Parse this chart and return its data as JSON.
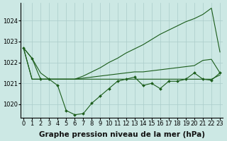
{
  "xlabel": "Graphe pression niveau de la mer (hPa)",
  "x": [
    0,
    1,
    2,
    3,
    4,
    5,
    6,
    7,
    8,
    9,
    10,
    11,
    12,
    13,
    14,
    15,
    16,
    17,
    18,
    19,
    20,
    21,
    22,
    23
  ],
  "line_dip": [
    1022.7,
    1022.2,
    1021.2,
    1021.2,
    1020.9,
    1019.7,
    1019.5,
    1019.55,
    1020.05,
    1020.4,
    1020.75,
    1021.1,
    1021.2,
    1021.3,
    1020.9,
    1021.0,
    1020.75,
    1021.1,
    1021.1,
    1021.2,
    1021.5,
    1021.2,
    1021.15,
    1021.5
  ],
  "line_rise": [
    1022.7,
    1022.2,
    1021.5,
    1021.2,
    1021.2,
    1021.2,
    1021.2,
    1021.35,
    1021.55,
    1021.75,
    1022.0,
    1022.2,
    1022.45,
    1022.65,
    1022.85,
    1023.1,
    1023.35,
    1023.55,
    1023.75,
    1023.95,
    1024.1,
    1024.3,
    1024.6,
    1022.5
  ],
  "line_flat": [
    1022.7,
    1021.2,
    1021.2,
    1021.2,
    1021.2,
    1021.2,
    1021.2,
    1021.2,
    1021.2,
    1021.2,
    1021.2,
    1021.2,
    1021.2,
    1021.2,
    1021.2,
    1021.2,
    1021.2,
    1021.2,
    1021.2,
    1021.2,
    1021.2,
    1021.2,
    1021.2,
    1021.4
  ],
  "line_grad": [
    1022.7,
    1021.2,
    1021.2,
    1021.2,
    1021.2,
    1021.2,
    1021.2,
    1021.25,
    1021.3,
    1021.35,
    1021.4,
    1021.45,
    1021.5,
    1021.55,
    1021.55,
    1021.6,
    1021.65,
    1021.7,
    1021.75,
    1021.8,
    1021.85,
    1022.1,
    1022.15,
    1021.5
  ],
  "bg_color": "#cce8e4",
  "grid_color": "#aaccca",
  "line_color": "#1a5c1a",
  "ylim": [
    1019.35,
    1024.85
  ],
  "yticks": [
    1020,
    1021,
    1022,
    1023,
    1024
  ],
  "xticks": [
    0,
    1,
    2,
    3,
    4,
    5,
    6,
    7,
    8,
    9,
    10,
    11,
    12,
    13,
    14,
    15,
    16,
    17,
    18,
    19,
    20,
    21,
    22,
    23
  ],
  "xlabel_fontsize": 7.5,
  "tick_fontsize": 6.0
}
